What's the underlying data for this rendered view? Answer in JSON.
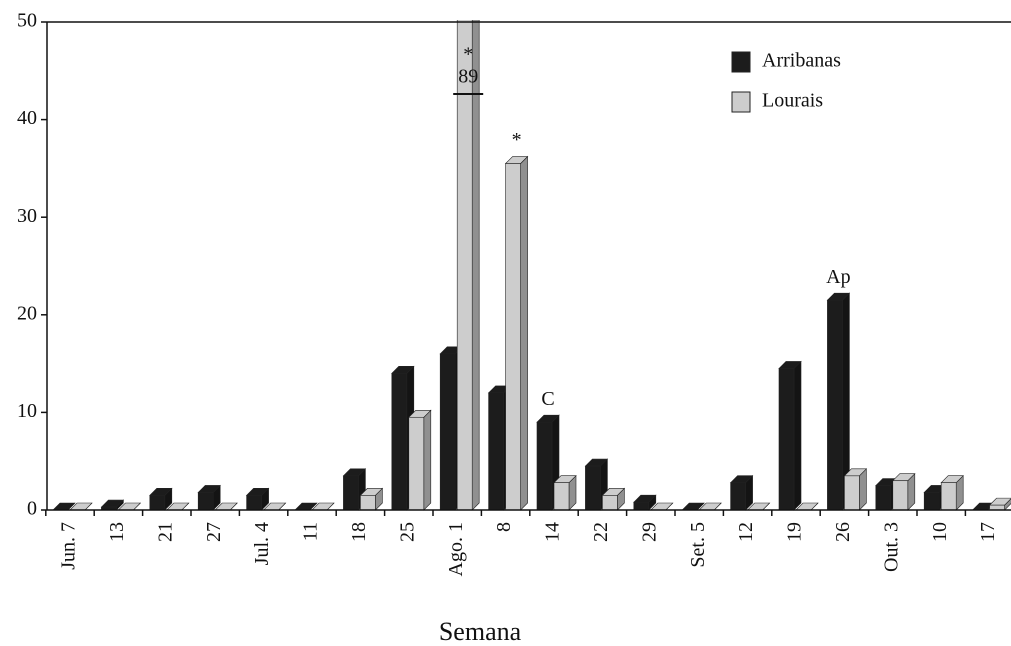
{
  "chart_data": {
    "type": "bar3d",
    "x_label": "Semana",
    "categories": [
      "Jun. 7",
      "13",
      "21",
      "27",
      "Jul. 4",
      "11",
      "18",
      "25",
      "Ago. 1",
      "8",
      "14",
      "22",
      "29",
      "Set. 5",
      "12",
      "19",
      "26",
      "Out. 3",
      "10",
      "17"
    ],
    "series": [
      {
        "name": "Arribanas",
        "color": "#1c1c1c",
        "values": [
          0,
          0.3,
          1.5,
          1.8,
          1.5,
          0,
          3.5,
          14,
          16,
          12,
          9,
          4.5,
          0.8,
          0,
          2.8,
          14.5,
          21.5,
          2.5,
          1.8,
          0
        ]
      },
      {
        "name": "Lourais",
        "color": "#cdcdcd",
        "values": [
          0,
          0,
          0,
          0,
          0,
          0,
          1.5,
          9.5,
          89,
          35.5,
          2.8,
          1.5,
          0,
          0,
          0,
          0,
          3.5,
          3,
          2.8,
          0.5
        ],
        "value_labels": [
          null,
          null,
          null,
          null,
          null,
          null,
          null,
          null,
          "89",
          null,
          null,
          null,
          null,
          null,
          null,
          null,
          null,
          null,
          null,
          null
        ]
      }
    ],
    "annotations": [
      "*",
      "*",
      "C",
      "Ap"
    ],
    "ylim": [
      0,
      50
    ],
    "yticks": [
      0,
      10,
      20,
      30,
      40,
      50
    ],
    "legend": "top-right"
  }
}
